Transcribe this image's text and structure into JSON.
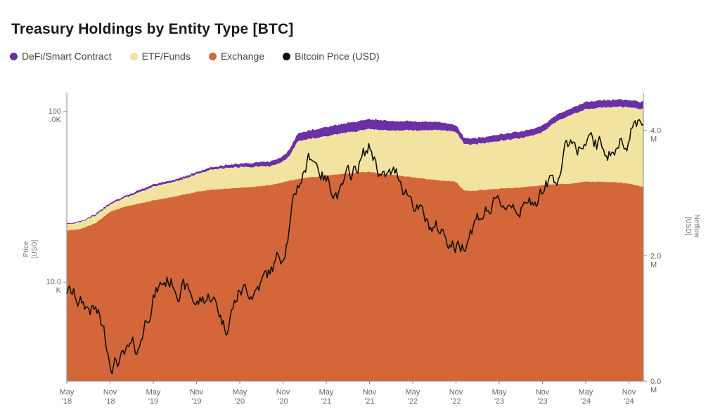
{
  "chart_data": {
    "type": "area",
    "title": "Treasury Holdings by Entity Type [BTC]",
    "legend": [
      {
        "name": "DeFi/Smart Contract",
        "color": "#6b2fa6"
      },
      {
        "name": "ETF/Funds",
        "color": "#f2e3a0"
      },
      {
        "name": "Exchange",
        "color": "#d4673a"
      },
      {
        "name": "Bitcoin Price (USD)",
        "color": "#111111"
      }
    ],
    "left_axis": {
      "label_line1": "Price",
      "label_line2": "[USD]",
      "scale": "log",
      "ticks": [
        {
          "value": 100000,
          "line1": "100",
          "line2": ".0K"
        },
        {
          "value": 10000,
          "line1": "10.0",
          "line2": "K"
        }
      ]
    },
    "right_axis": {
      "label_line1": "Netflow",
      "label_line2": "[USD]",
      "range": [
        0,
        4600000
      ],
      "ticks": [
        {
          "value": 0,
          "line1": "0.0",
          "line2": "M"
        },
        {
          "value": 2000000,
          "line1": "2.0",
          "line2": "M"
        },
        {
          "value": 4000000,
          "line1": "4.0",
          "line2": "M"
        }
      ]
    },
    "x_ticks": [
      {
        "t": 0,
        "line1": "May",
        "line2": "'18"
      },
      {
        "t": 6,
        "line1": "Nov",
        "line2": "'18"
      },
      {
        "t": 12,
        "line1": "May",
        "line2": "'19"
      },
      {
        "t": 18,
        "line1": "Nov",
        "line2": "'19"
      },
      {
        "t": 24,
        "line1": "May",
        "line2": "'20"
      },
      {
        "t": 30,
        "line1": "Nov",
        "line2": "'20"
      },
      {
        "t": 36,
        "line1": "May",
        "line2": "'21"
      },
      {
        "t": 42,
        "line1": "Nov",
        "line2": "'21"
      },
      {
        "t": 48,
        "line1": "May",
        "line2": "'22"
      },
      {
        "t": 54,
        "line1": "Nov",
        "line2": "'22"
      },
      {
        "t": 60,
        "line1": "May",
        "line2": "'23"
      },
      {
        "t": 66,
        "line1": "Nov",
        "line2": "'23"
      },
      {
        "t": 72,
        "line1": "May",
        "line2": "'24"
      },
      {
        "t": 78,
        "line1": "Nov",
        "line2": "'24"
      }
    ],
    "x": [
      "May '18",
      "Jul '18",
      "Sep '18",
      "Nov '18",
      "Jan '19",
      "Mar '19",
      "May '19",
      "Jul '19",
      "Sep '19",
      "Nov '19",
      "Jan '20",
      "Mar '20",
      "May '20",
      "Jul '20",
      "Sep '20",
      "Nov '20",
      "Dec '20",
      "Jan '21",
      "Mar '21",
      "May '21",
      "Jul '21",
      "Sep '21",
      "Nov '21",
      "Jan '22",
      "Mar '22",
      "May '22",
      "Jul '22",
      "Sep '22",
      "Nov '22",
      "Dec '22",
      "Jan '23",
      "Mar '23",
      "May '23",
      "Jul '23",
      "Sep '23",
      "Nov '23",
      "Jan '24",
      "Mar '24",
      "May '24",
      "Jul '24",
      "Sep '24",
      "Nov '24",
      "Jan '25"
    ],
    "t": [
      0,
      2,
      4,
      6,
      8,
      10,
      12,
      14,
      16,
      18,
      20,
      22,
      24,
      26,
      28,
      30,
      31,
      32,
      34,
      36,
      38,
      40,
      42,
      44,
      46,
      48,
      50,
      52,
      54,
      55,
      56,
      58,
      60,
      62,
      64,
      66,
      68,
      70,
      72,
      74,
      76,
      78,
      80
    ],
    "series": [
      {
        "name": "Exchange",
        "values": [
          2.4,
          2.43,
          2.52,
          2.7,
          2.78,
          2.83,
          2.88,
          2.92,
          2.97,
          3.02,
          3.05,
          3.07,
          3.08,
          3.1,
          3.12,
          3.17,
          3.2,
          3.22,
          3.25,
          3.28,
          3.3,
          3.32,
          3.34,
          3.3,
          3.28,
          3.25,
          3.22,
          3.2,
          3.18,
          3.05,
          3.03,
          3.05,
          3.07,
          3.08,
          3.1,
          3.12,
          3.14,
          3.15,
          3.18,
          3.18,
          3.17,
          3.15,
          3.1
        ]
      },
      {
        "name": "ETF/Funds",
        "values": [
          0.1,
          0.11,
          0.12,
          0.12,
          0.14,
          0.18,
          0.22,
          0.23,
          0.25,
          0.28,
          0.32,
          0.33,
          0.33,
          0.32,
          0.3,
          0.33,
          0.4,
          0.6,
          0.62,
          0.62,
          0.65,
          0.66,
          0.68,
          0.7,
          0.72,
          0.75,
          0.78,
          0.8,
          0.8,
          0.75,
          0.74,
          0.75,
          0.76,
          0.78,
          0.8,
          0.85,
          1.0,
          1.1,
          1.15,
          1.18,
          1.2,
          1.22,
          1.24
        ]
      },
      {
        "name": "DeFi/Smart Contract",
        "values": [
          0.01,
          0.01,
          0.02,
          0.02,
          0.02,
          0.03,
          0.03,
          0.03,
          0.03,
          0.03,
          0.03,
          0.04,
          0.05,
          0.06,
          0.07,
          0.08,
          0.1,
          0.12,
          0.13,
          0.14,
          0.14,
          0.15,
          0.15,
          0.15,
          0.14,
          0.14,
          0.13,
          0.12,
          0.1,
          0.09,
          0.09,
          0.09,
          0.1,
          0.1,
          0.1,
          0.1,
          0.1,
          0.1,
          0.11,
          0.11,
          0.11,
          0.11,
          0.11
        ]
      },
      {
        "name": "Bitcoin Price (USD)",
        "values": [
          9000,
          7500,
          6800,
          3600,
          3500,
          4000,
          8500,
          10500,
          9500,
          7500,
          8500,
          5500,
          9000,
          9200,
          11000,
          15000,
          23000,
          36000,
          57000,
          40000,
          33000,
          45000,
          61000,
          40000,
          42000,
          31000,
          21000,
          20000,
          16500,
          16800,
          22000,
          27000,
          27500,
          30000,
          26500,
          36000,
          42000,
          68000,
          63000,
          62000,
          60000,
          76000,
          97000
        ]
      }
    ]
  }
}
